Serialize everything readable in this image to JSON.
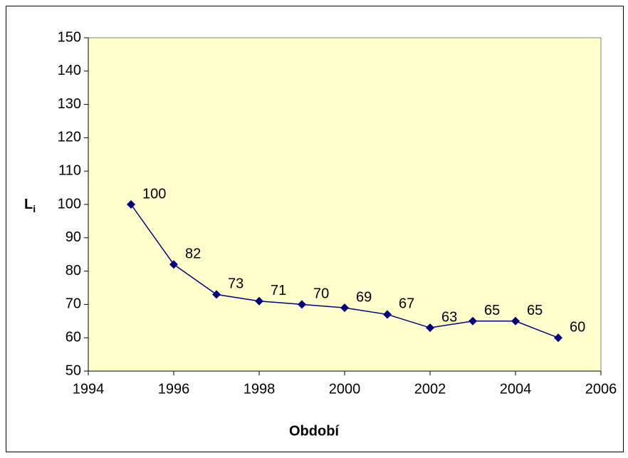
{
  "chart_data": {
    "type": "line",
    "xlabel": "Období",
    "ylabel": [
      "L",
      "i"
    ],
    "x": [
      1995,
      1996,
      1997,
      1998,
      1999,
      2000,
      2001,
      2002,
      2003,
      2004,
      2005
    ],
    "series": [
      {
        "color": "#000080",
        "values": [
          100,
          82,
          73,
          71,
          70,
          69,
          67,
          63,
          65,
          65,
          60
        ]
      }
    ],
    "xlim": [
      1994,
      2006
    ],
    "xticks": [
      1994,
      1996,
      1998,
      2000,
      2002,
      2004,
      2006
    ],
    "ylim": [
      50,
      150
    ],
    "yticks": [
      50,
      60,
      70,
      80,
      90,
      100,
      110,
      120,
      130,
      140,
      150
    ],
    "grid": false,
    "data_labels": true,
    "plot_background": "#FFFFCC"
  }
}
